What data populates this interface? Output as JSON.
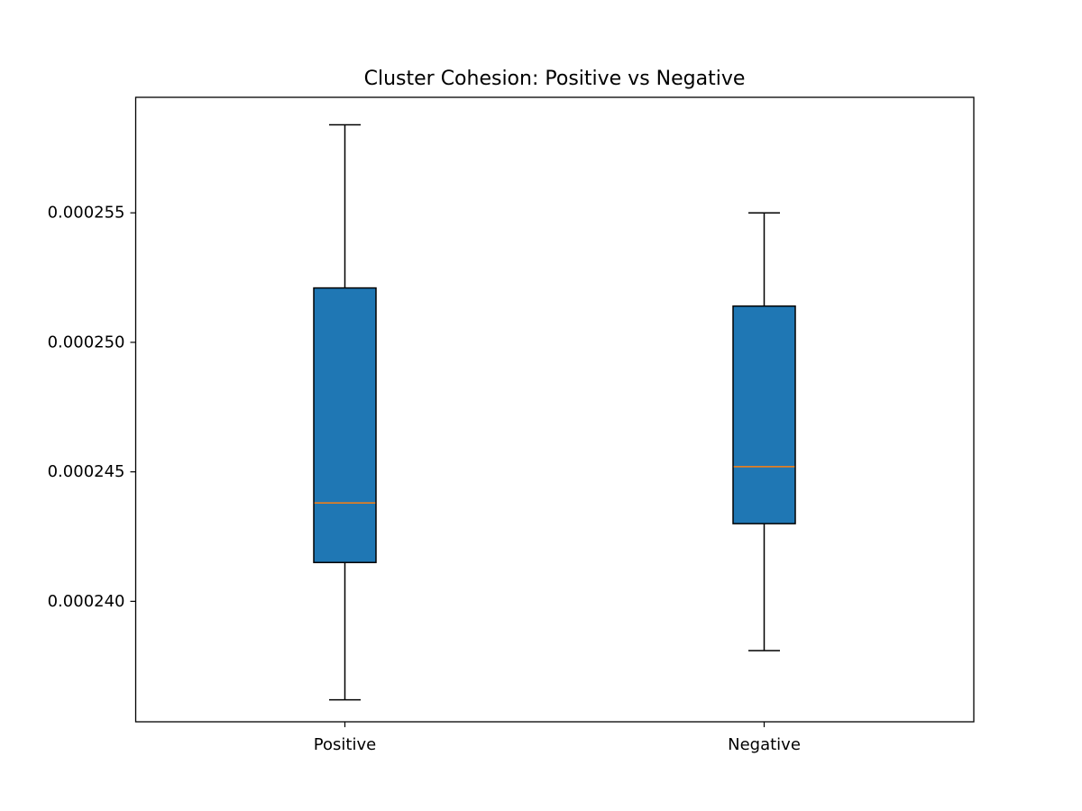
{
  "chart_data": {
    "type": "boxplot",
    "title": "Cluster Cohesion: Positive vs Negative",
    "xlabel": "",
    "ylabel": "",
    "categories": [
      "Positive",
      "Negative"
    ],
    "boxes": [
      {
        "label": "Positive",
        "whisker_low": 0.0002362,
        "q1": 0.0002415,
        "median": 0.0002438,
        "q3": 0.0002521,
        "whisker_high": 0.0002584
      },
      {
        "label": "Negative",
        "whisker_low": 0.0002381,
        "q1": 0.000243,
        "median": 0.0002452,
        "q3": 0.0002514,
        "whisker_high": 0.000255
      }
    ],
    "yticks": [
      0.00024,
      0.000245,
      0.00025,
      0.000255
    ],
    "ytick_labels": [
      "0.000240",
      "0.000245",
      "0.000250",
      "0.000255"
    ],
    "ylim": [
      0.00023535,
      0.00025946
    ],
    "grid": false,
    "legend": "none",
    "colors": {
      "box_fill": "#1f77b4",
      "median": "#ff7f0e",
      "edge": "#000000"
    }
  }
}
